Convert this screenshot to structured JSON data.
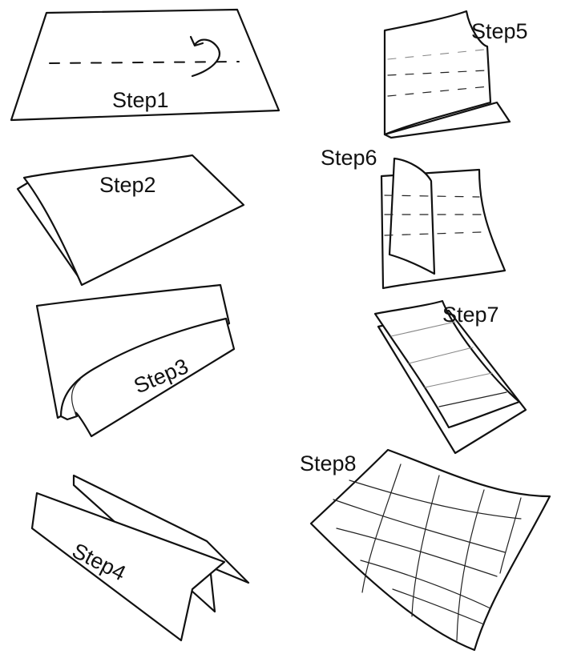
{
  "steps": [
    {
      "label": "Step1"
    },
    {
      "label": "Step2"
    },
    {
      "label": "Step3"
    },
    {
      "label": "Step4"
    },
    {
      "label": "Step5"
    },
    {
      "label": "Step6"
    },
    {
      "label": "Step7"
    },
    {
      "label": "Step8"
    }
  ]
}
